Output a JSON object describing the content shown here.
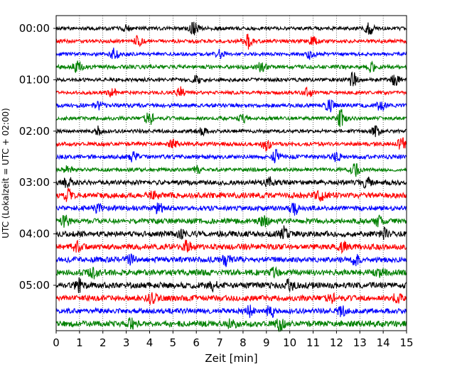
{
  "chart_data": {
    "type": "line",
    "title": "",
    "xlabel": "Zeit  [min]",
    "ylabel": "UTC (Lokalzeit = UTC + 02:00)",
    "xlim": [
      0,
      15
    ],
    "x_ticks": [
      0,
      1,
      2,
      3,
      4,
      5,
      6,
      7,
      8,
      9,
      10,
      11,
      12,
      13,
      14,
      15
    ],
    "x_tick_labels": [
      "0",
      "1",
      "2",
      "3",
      "4",
      "5",
      "6",
      "7",
      "8",
      "9",
      "10",
      "11",
      "12",
      "13",
      "14",
      "15"
    ],
    "y_tick_labels": [
      "00:00",
      "01:00",
      "02:00",
      "03:00",
      "04:00",
      "05:00"
    ],
    "y_tick_trace_index": [
      0,
      4,
      8,
      12,
      16,
      20
    ],
    "grid": "vertical dotted",
    "trace_minutes": 15,
    "trace_count": 24,
    "trace_colors": [
      "#000000",
      "#ff0000",
      "#0000ff",
      "#008000"
    ],
    "trace_start_times": [
      "00:00",
      "00:15",
      "00:30",
      "00:45",
      "01:00",
      "01:15",
      "01:30",
      "01:45",
      "02:00",
      "02:15",
      "02:30",
      "02:45",
      "03:00",
      "03:15",
      "03:30",
      "03:45",
      "04:00",
      "04:15",
      "04:30",
      "04:45",
      "05:00",
      "05:15",
      "05:30",
      "05:45"
    ],
    "trace_amplitude": [
      0.45,
      0.45,
      0.42,
      0.5,
      0.45,
      0.42,
      0.48,
      0.45,
      0.45,
      0.48,
      0.5,
      0.45,
      0.6,
      0.7,
      0.6,
      0.65,
      0.7,
      0.7,
      0.7,
      0.75,
      0.75,
      0.7,
      0.65,
      0.75
    ],
    "bursts": [
      [
        [
          5.9,
          1.8
        ],
        [
          13.4,
          1.7
        ],
        [
          3.0,
          1.0
        ]
      ],
      [
        [
          8.2,
          2.2
        ],
        [
          3.5,
          1.4
        ],
        [
          11.0,
          1.2
        ]
      ],
      [
        [
          2.5,
          1.5
        ],
        [
          10.9,
          1.4
        ],
        [
          7.0,
          1.1
        ]
      ],
      [
        [
          0.9,
          1.6
        ],
        [
          8.8,
          1.3
        ],
        [
          13.5,
          1.3
        ]
      ],
      [
        [
          12.7,
          2.0
        ],
        [
          14.5,
          1.3
        ],
        [
          6.0,
          1.1
        ]
      ],
      [
        [
          5.3,
          1.6
        ],
        [
          10.8,
          1.4
        ],
        [
          2.4,
          1.1
        ]
      ],
      [
        [
          11.7,
          1.6
        ],
        [
          13.9,
          1.4
        ],
        [
          1.8,
          1.0
        ]
      ],
      [
        [
          4.0,
          2.0
        ],
        [
          12.2,
          2.4
        ],
        [
          8.0,
          1.1
        ]
      ],
      [
        [
          6.2,
          1.5
        ],
        [
          13.7,
          1.4
        ],
        [
          1.8,
          1.3
        ]
      ],
      [
        [
          9.0,
          1.9
        ],
        [
          14.8,
          1.6
        ],
        [
          5.0,
          1.1
        ]
      ],
      [
        [
          9.4,
          1.7
        ],
        [
          3.3,
          1.3
        ],
        [
          12.0,
          1.2
        ]
      ],
      [
        [
          12.8,
          1.8
        ],
        [
          6.0,
          1.2
        ],
        [
          0.5,
          1.1
        ]
      ],
      [
        [
          0.5,
          1.5
        ],
        [
          9.1,
          1.5
        ],
        [
          13.3,
          1.3
        ]
      ],
      [
        [
          11.3,
          1.8
        ],
        [
          0.5,
          1.5
        ],
        [
          4.2,
          1.2
        ]
      ],
      [
        [
          10.2,
          1.8
        ],
        [
          4.4,
          1.4
        ],
        [
          1.8,
          1.2
        ]
      ],
      [
        [
          0.4,
          1.4
        ],
        [
          8.9,
          1.3
        ],
        [
          13.8,
          1.2
        ]
      ],
      [
        [
          9.7,
          1.8
        ],
        [
          14.0,
          1.4
        ],
        [
          5.3,
          1.2
        ]
      ],
      [
        [
          5.6,
          1.6
        ],
        [
          0.9,
          1.3
        ],
        [
          12.3,
          1.2
        ]
      ],
      [
        [
          7.3,
          1.5
        ],
        [
          12.8,
          1.4
        ],
        [
          3.2,
          1.2
        ]
      ],
      [
        [
          1.6,
          1.4
        ],
        [
          9.3,
          1.3
        ],
        [
          13.9,
          1.2
        ]
      ],
      [
        [
          1.0,
          1.6
        ],
        [
          10.0,
          1.5
        ],
        [
          6.7,
          1.2
        ]
      ],
      [
        [
          4.1,
          1.5
        ],
        [
          11.8,
          1.3
        ],
        [
          14.6,
          1.2
        ]
      ],
      [
        [
          9.2,
          1.8
        ],
        [
          8.3,
          1.4
        ],
        [
          12.2,
          1.3
        ]
      ],
      [
        [
          9.6,
          1.5
        ],
        [
          3.2,
          1.4
        ],
        [
          7.5,
          1.2
        ]
      ]
    ]
  }
}
